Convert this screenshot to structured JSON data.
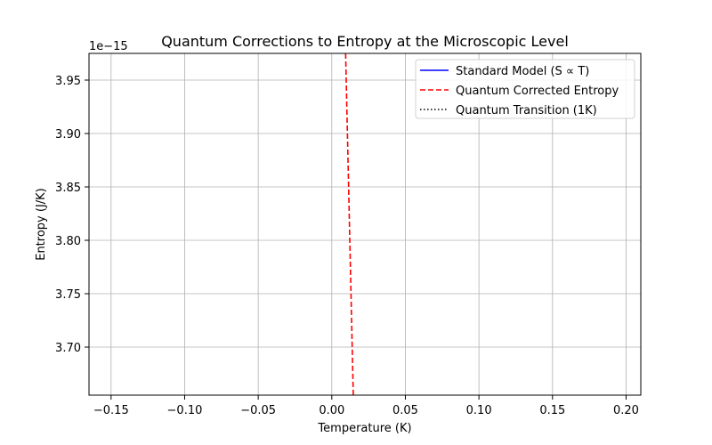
{
  "chart_data": {
    "type": "line",
    "title": "Quantum Corrections to Entropy at the Microscopic Level",
    "xlabel": "Temperature (K)",
    "ylabel": "Entropy (J/K)",
    "y_offset_label": "1e−15",
    "xlim": [
      -0.165,
      0.21
    ],
    "ylim": [
      3.655,
      3.975
    ],
    "xticks": [
      {
        "value": -0.15,
        "label": "−0.15"
      },
      {
        "value": -0.1,
        "label": "−0.10"
      },
      {
        "value": -0.05,
        "label": "−0.05"
      },
      {
        "value": 0.0,
        "label": "0.00"
      },
      {
        "value": 0.05,
        "label": "0.05"
      },
      {
        "value": 0.1,
        "label": "0.10"
      },
      {
        "value": 0.15,
        "label": "0.15"
      },
      {
        "value": 0.2,
        "label": "0.20"
      }
    ],
    "yticks": [
      {
        "value": 3.7,
        "label": "3.70"
      },
      {
        "value": 3.75,
        "label": "3.75"
      },
      {
        "value": 3.8,
        "label": "3.80"
      },
      {
        "value": 3.85,
        "label": "3.85"
      },
      {
        "value": 3.9,
        "label": "3.90"
      },
      {
        "value": 3.95,
        "label": "3.95"
      }
    ],
    "grid": true,
    "legend_position": "top-right",
    "series": [
      {
        "name": "Standard Model (S ∝ T)",
        "color": "#0000ff",
        "style": "solid",
        "x": [],
        "y": []
      },
      {
        "name": "Quantum Corrected Entropy",
        "color": "#ff0000",
        "style": "dashed",
        "x": [
          0.0094,
          0.0146
        ],
        "y": [
          3.975,
          3.655
        ]
      },
      {
        "name": "Quantum Transition (1K)",
        "color": "#000000",
        "style": "dotted",
        "x": [],
        "y": []
      }
    ]
  }
}
